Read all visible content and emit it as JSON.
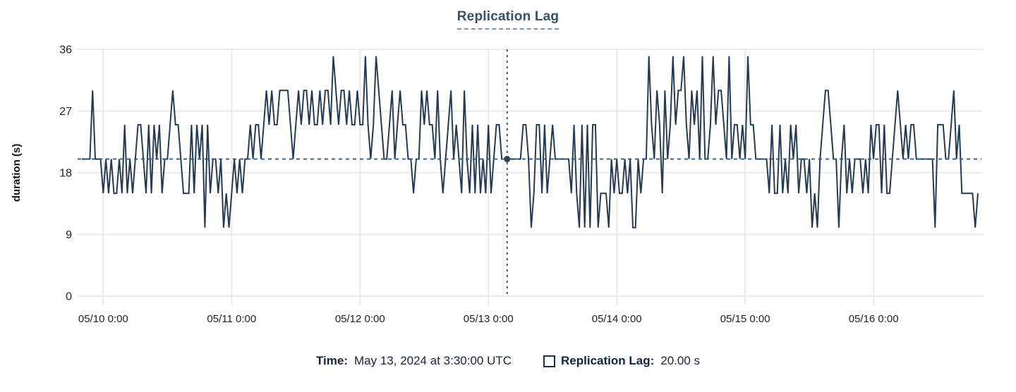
{
  "title": "Replication Lag",
  "chart_data": {
    "type": "line",
    "title": "Replication Lag",
    "xlabel": "",
    "ylabel": "duration (s)",
    "ylim": [
      0,
      36
    ],
    "y_ticks": [
      0,
      9,
      18,
      27,
      36
    ],
    "grid": true,
    "legend_position": "bottom",
    "x_interval": "30min",
    "x_ticks": [
      {
        "index": 8,
        "label": "05/10 0:00"
      },
      {
        "index": 56,
        "label": "05/11 0:00"
      },
      {
        "index": 104,
        "label": "05/12 0:00"
      },
      {
        "index": 152,
        "label": "05/13 0:00"
      },
      {
        "index": 200,
        "label": "05/14 0:00"
      },
      {
        "index": 248,
        "label": "05/15 0:00"
      },
      {
        "index": 296,
        "label": "05/16 0:00"
      }
    ],
    "series": [
      {
        "name": "Replication Lag",
        "color": "#243b53",
        "values": [
          20,
          20,
          20,
          20,
          30,
          20,
          20,
          20,
          15,
          20,
          15,
          20,
          15,
          15,
          20,
          15,
          25,
          15,
          20,
          15,
          20,
          25,
          25,
          20,
          15,
          25,
          15,
          25,
          20,
          25,
          15,
          20,
          20,
          25,
          30,
          25,
          25,
          20,
          15,
          15,
          15,
          25,
          15,
          25,
          20,
          25,
          10,
          25,
          15,
          20,
          20,
          15,
          20,
          10,
          15,
          10,
          15,
          20,
          15,
          20,
          15,
          20,
          20,
          25,
          20,
          25,
          25,
          20,
          25,
          30,
          25,
          30,
          25,
          25,
          30,
          30,
          30,
          30,
          25,
          20,
          25,
          30,
          25,
          30,
          30,
          25,
          30,
          25,
          25,
          30,
          25,
          30,
          30,
          25,
          35,
          30,
          25,
          30,
          30,
          25,
          30,
          25,
          25,
          30,
          25,
          25,
          35,
          25,
          20,
          25,
          35,
          30,
          25,
          20,
          20,
          25,
          30,
          20,
          25,
          30,
          25,
          25,
          20,
          20,
          15,
          20,
          20,
          30,
          25,
          30,
          25,
          25,
          20,
          30,
          20,
          15,
          20,
          25,
          30,
          20,
          25,
          20,
          15,
          30,
          20,
          15,
          25,
          15,
          25,
          15,
          20,
          15,
          25,
          15,
          20,
          25,
          25,
          20,
          20,
          20,
          20,
          20,
          20,
          20,
          20,
          25,
          25,
          20,
          10,
          15,
          25,
          25,
          15,
          25,
          15,
          20,
          25,
          20,
          20,
          20,
          20,
          20,
          20,
          15,
          25,
          15,
          10,
          25,
          10,
          25,
          10,
          25,
          25,
          10,
          15,
          15,
          15,
          10,
          20,
          15,
          20,
          15,
          15,
          20,
          15,
          20,
          10,
          10,
          20,
          15,
          20,
          20,
          35,
          25,
          20,
          30,
          25,
          15,
          30,
          20,
          25,
          35,
          25,
          30,
          30,
          35,
          25,
          20,
          30,
          25,
          30,
          20,
          35,
          20,
          20,
          25,
          35,
          25,
          30,
          30,
          25,
          20,
          35,
          20,
          25,
          25,
          20,
          25,
          20,
          35,
          25,
          25,
          20,
          20,
          20,
          20,
          20,
          15,
          25,
          15,
          15,
          25,
          15,
          20,
          15,
          25,
          20,
          25,
          15,
          20,
          20,
          15,
          20,
          10,
          15,
          10,
          20,
          25,
          30,
          30,
          25,
          20,
          20,
          10,
          20,
          25,
          15,
          20,
          15,
          20,
          20,
          20,
          15,
          20,
          15,
          25,
          20,
          25,
          25,
          15,
          25,
          15,
          15,
          20,
          25,
          30,
          25,
          20,
          25,
          20,
          25,
          25,
          20,
          20,
          20,
          20,
          20,
          20,
          20,
          10,
          25,
          25,
          25,
          20,
          20,
          25,
          30,
          20,
          25,
          15,
          15,
          15,
          15,
          15,
          10,
          15
        ]
      }
    ],
    "crosshair": {
      "index": 159,
      "value": 20,
      "time": "May 13, 2024 at 3:30:00 UTC",
      "formatted_value": "20.00 s"
    }
  },
  "footer": {
    "time_label": "Time:",
    "time_value": "May 13, 2024 at 3:30:00 UTC",
    "series_label": "Replication Lag:",
    "series_value": "20.00 s"
  },
  "colors": {
    "line": "#243b53",
    "crosshair": "#3c5a70",
    "crosshair_dot": "#2e4457",
    "grid": "#e8e8e8",
    "title": "#35506b",
    "axis_text": "#1f1f1f",
    "footer_text": "#14243c",
    "swatch_border": "#16324c"
  }
}
